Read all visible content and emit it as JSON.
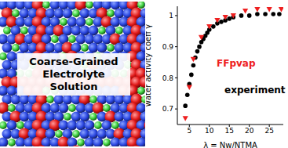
{
  "chart_data": {
    "type": "scatter",
    "annotations": [
      "Coarse-Grained Electrolyte Solution"
    ],
    "x_label": "λ = Nw/NTMA",
    "y_label": "water activity coeff γ",
    "xlim": [
      2,
      28.5
    ],
    "xticks": [
      5,
      10,
      15,
      20,
      25
    ],
    "ylim": [
      0.65,
      1.03
    ],
    "yticks": [
      0.7,
      0.8,
      0.9,
      1
    ],
    "series": [
      {
        "name": "experiment",
        "color": "#000000",
        "marker": "circle",
        "x": [
          4,
          4.5,
          5,
          5.5,
          6,
          6.5,
          7,
          7.5,
          8,
          8.5,
          9,
          9.5,
          10,
          11,
          12,
          13,
          14,
          15,
          16,
          18,
          20,
          22,
          24,
          26,
          27.5
        ],
        "values": [
          0.71,
          0.745,
          0.78,
          0.81,
          0.84,
          0.865,
          0.885,
          0.9,
          0.915,
          0.925,
          0.935,
          0.945,
          0.955,
          0.965,
          0.975,
          0.98,
          0.985,
          0.99,
          0.995,
          1.0,
          1.0,
          1.005,
          1.005,
          1.005,
          1.005
        ]
      },
      {
        "name": "FFpvap",
        "color": "#ee2020",
        "marker": "triangle_down",
        "x": [
          4,
          5,
          6,
          8,
          10,
          12,
          14,
          16,
          19,
          22,
          25,
          28
        ],
        "values": [
          0.67,
          0.77,
          0.86,
          0.93,
          0.965,
          0.985,
          0.995,
          1.0,
          1.015,
          1.02,
          1.02,
          1.02
        ]
      }
    ]
  }
}
